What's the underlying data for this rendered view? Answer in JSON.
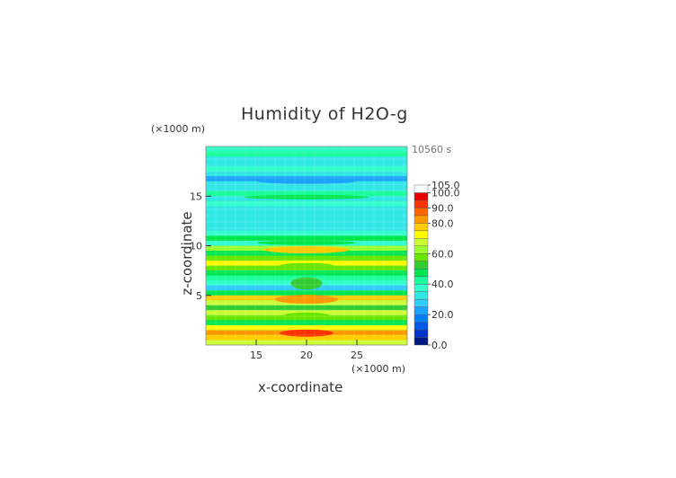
{
  "chart_data": {
    "type": "heatmap",
    "title": "Humidity of H2O-g",
    "xlabel": "x-coordinate",
    "ylabel": "z-coordinate",
    "x_unit": "(×1000 m)",
    "y_unit": "(×1000 m)",
    "time_label": "10560 s",
    "xlim": [
      10,
      30
    ],
    "ylim": [
      0,
      20
    ],
    "x_ticks": [
      15,
      20,
      25
    ],
    "y_ticks": [
      5,
      10,
      15
    ],
    "colorbar": {
      "labels": [
        "105.0",
        "100.0",
        "90.0",
        "80.0",
        "60.0",
        "40.0",
        "20.0",
        "0.0"
      ],
      "label_values": [
        105,
        100,
        90,
        80,
        60,
        40,
        20,
        0
      ],
      "range": [
        0,
        105
      ],
      "colors": [
        "#001a80",
        "#0033cc",
        "#0059e6",
        "#0080ff",
        "#1aa3ff",
        "#33ccff",
        "#33e6e6",
        "#33ffcc",
        "#1aff99",
        "#00e64d",
        "#33cc33",
        "#66e600",
        "#99ff33",
        "#ccff33",
        "#ffff00",
        "#ffcc00",
        "#ff9900",
        "#ff6600",
        "#ff3300",
        "#e60000",
        "#ffffff"
      ]
    },
    "bands": [
      {
        "z": 19.5,
        "value": 38
      },
      {
        "z": 19.0,
        "value": 42
      },
      {
        "z": 18.5,
        "value": 36
      },
      {
        "z": 18.0,
        "value": 33
      },
      {
        "z": 17.5,
        "value": 37
      },
      {
        "z": 16.5,
        "value": 22
      },
      {
        "z": 15.5,
        "value": 36
      },
      {
        "z": 15.0,
        "value": 47
      },
      {
        "z": 14.0,
        "value": 38
      },
      {
        "z": 12.5,
        "value": 36
      },
      {
        "z": 11.0,
        "value": 38
      },
      {
        "z": 10.5,
        "value": 50
      },
      {
        "z": 10.0,
        "value": 40
      },
      {
        "z": 9.5,
        "value": 64
      },
      {
        "z": 9.0,
        "value": 52
      },
      {
        "z": 8.5,
        "value": 60
      },
      {
        "z": 8.0,
        "value": 76
      },
      {
        "z": 7.5,
        "value": 62
      },
      {
        "z": 7.0,
        "value": 48
      },
      {
        "z": 6.5,
        "value": 45
      },
      {
        "z": 6.0,
        "value": 40
      },
      {
        "z": 5.5,
        "value": 30
      },
      {
        "z": 5.0,
        "value": 52
      },
      {
        "z": 4.5,
        "value": 80
      },
      {
        "z": 4.0,
        "value": 70
      },
      {
        "z": 3.5,
        "value": 56
      },
      {
        "z": 3.0,
        "value": 70
      },
      {
        "z": 2.5,
        "value": 60
      },
      {
        "z": 2.0,
        "value": 50
      },
      {
        "z": 1.5,
        "value": 78
      },
      {
        "z": 1.0,
        "value": 88
      },
      {
        "z": 0.5,
        "value": 82
      },
      {
        "z": 0.0,
        "value": 70
      }
    ],
    "center_bump": {
      "x": 20,
      "width": 4.5
    }
  }
}
